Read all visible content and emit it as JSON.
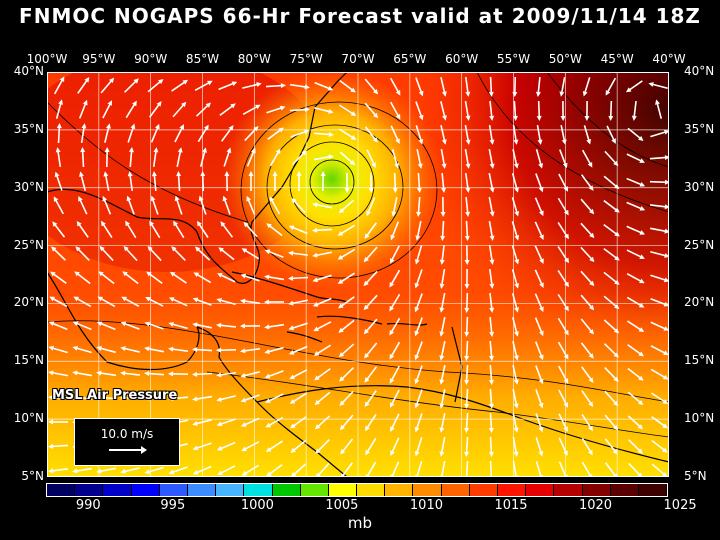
{
  "title": "FNMOC NOGAPS 66-Hr Forecast valid at 2009/11/14 18Z",
  "lon_labels": [
    "100°W",
    "95°W",
    "90°W",
    "85°W",
    "80°W",
    "75°W",
    "70°W",
    "65°W",
    "60°W",
    "55°W",
    "50°W",
    "45°W",
    "40°W"
  ],
  "lat_labels": [
    "40°N",
    "35°N",
    "30°N",
    "25°N",
    "20°N",
    "15°N",
    "10°N",
    "5°N"
  ],
  "field_label": "MSL Air Pressure",
  "vector_ref": "10.0 m/s",
  "colorbar": {
    "unit": "mb",
    "tick_labels": [
      "990",
      "995",
      "1000",
      "1005",
      "1010",
      "1015",
      "1020",
      "1025"
    ],
    "colors": [
      "#000060",
      "#00008c",
      "#0000c8",
      "#0000ff",
      "#2d5aff",
      "#3c8cff",
      "#46b4ff",
      "#00e0e0",
      "#00c800",
      "#64e600",
      "#ffff00",
      "#ffdc00",
      "#ffb400",
      "#ff8c00",
      "#ff6400",
      "#ff3c00",
      "#ff1400",
      "#e60000",
      "#b40000",
      "#820000",
      "#5a0000",
      "#3c0000"
    ]
  }
}
